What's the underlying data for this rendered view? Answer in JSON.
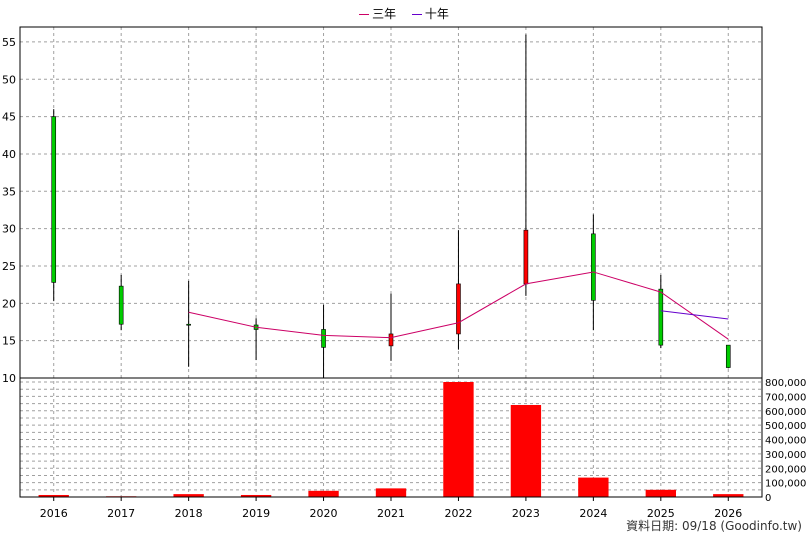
{
  "legend": {
    "three_year": "三年",
    "ten_year": "十年"
  },
  "source_note": "資料日期: 09/18 (Goodinfo.tw)",
  "colors": {
    "up": "#00cc00",
    "down": "#ff0000",
    "wick": "#000000",
    "ma3": "#cc0066",
    "ma10": "#6600cc",
    "volume": "#ff0000",
    "grid": "#a0a0a0"
  },
  "chart_data": [
    {
      "type": "candlestick",
      "categories": [
        "2016",
        "2017",
        "2018",
        "2019",
        "2020",
        "2021",
        "2022",
        "2023",
        "2024",
        "2025",
        "2026"
      ],
      "ylim": [
        10,
        57
      ],
      "yticks": [
        10,
        15,
        20,
        25,
        30,
        35,
        40,
        45,
        50,
        55
      ],
      "grid": true,
      "legend_position": "top-center",
      "candles": [
        {
          "x": "2016",
          "open": 22.8,
          "close": 45.0,
          "high": 46.0,
          "low": 20.3
        },
        {
          "x": "2017",
          "open": 17.2,
          "close": 22.3,
          "high": 23.8,
          "low": 16.4
        },
        {
          "x": "2018",
          "open": 17.2,
          "close": 17.2,
          "high": 23.0,
          "low": 11.5
        },
        {
          "x": "2019",
          "open": 16.5,
          "close": 17.1,
          "high": 18.0,
          "low": 12.4
        },
        {
          "x": "2020",
          "open": 14.1,
          "close": 16.5,
          "high": 19.8,
          "low": 10.0
        },
        {
          "x": "2021",
          "open": 15.9,
          "close": 14.3,
          "high": 21.3,
          "low": 12.3
        },
        {
          "x": "2022",
          "open": 22.6,
          "close": 15.9,
          "high": 29.8,
          "low": 13.8
        },
        {
          "x": "2023",
          "open": 29.8,
          "close": 22.6,
          "high": 56.0,
          "low": 21.0
        },
        {
          "x": "2024",
          "open": 20.4,
          "close": 29.3,
          "high": 31.9,
          "low": 16.4
        },
        {
          "x": "2025",
          "open": 14.4,
          "close": 21.9,
          "high": 23.8,
          "low": 14.0
        },
        {
          "x": "2026",
          "open": 11.4,
          "close": 14.4,
          "high": 14.4,
          "low": 11.3
        }
      ],
      "series": [
        {
          "name": "三年",
          "x": [
            "2018",
            "2019",
            "2020",
            "2021",
            "2022",
            "2023",
            "2024",
            "2025",
            "2026"
          ],
          "values": [
            18.8,
            16.8,
            15.7,
            15.4,
            17.4,
            22.6,
            24.2,
            21.5,
            15.2
          ]
        },
        {
          "name": "十年",
          "x": [
            "2025",
            "2026"
          ],
          "values": [
            19.0,
            17.9
          ]
        }
      ]
    },
    {
      "type": "bar",
      "categories": [
        "2016",
        "2017",
        "2018",
        "2019",
        "2020",
        "2021",
        "2022",
        "2023",
        "2024",
        "2025",
        "2026"
      ],
      "values": [
        14000,
        5000,
        20000,
        14000,
        43000,
        60000,
        800000,
        640000,
        135000,
        50000,
        20000
      ],
      "ylim": [
        0,
        800000
      ],
      "yticks": [
        0,
        100000,
        200000,
        300000,
        400000,
        500000,
        600000,
        700000,
        800000
      ],
      "ytick_labels": [
        "0",
        "100,000",
        "200,000",
        "300,000",
        "400,000",
        "500,000",
        "600,000",
        "700,000",
        "800,000"
      ],
      "grid": true
    }
  ]
}
